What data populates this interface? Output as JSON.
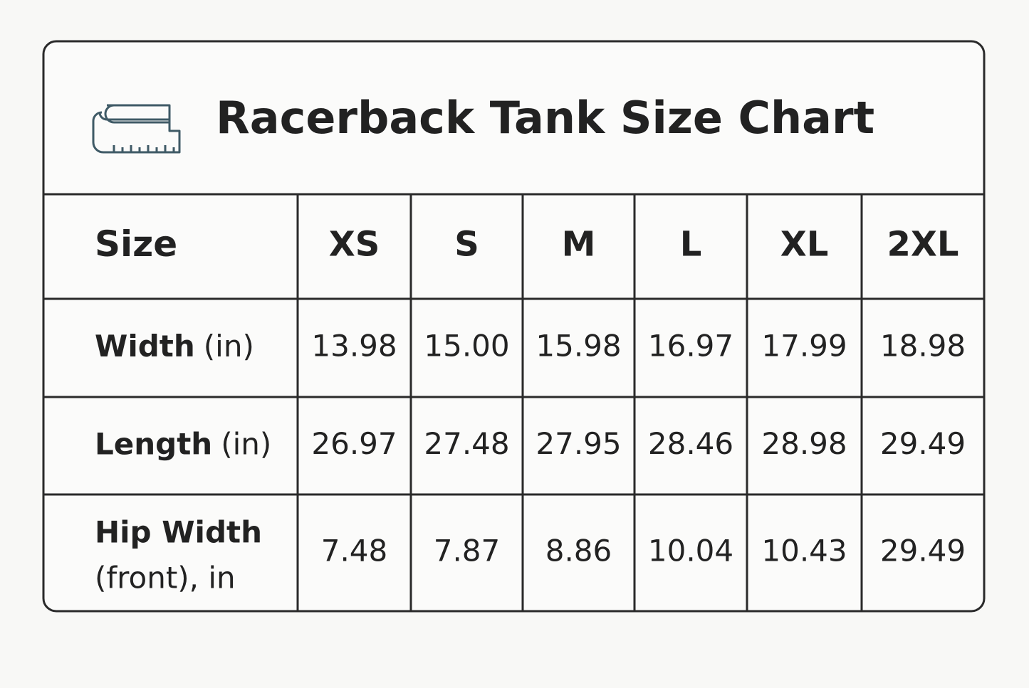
{
  "header": {
    "title": "Racerback Tank Size Chart"
  },
  "table": {
    "header": [
      "Size",
      "XS",
      "S",
      "M",
      "L",
      "XL",
      "2XL"
    ],
    "rows": [
      {
        "label": {
          "name": "Width",
          "unit": "(in)"
        },
        "values": [
          "13.98",
          "15.00",
          "15.98",
          "16.97",
          "17.99",
          "18.98"
        ]
      },
      {
        "label": {
          "name": "Length",
          "unit": "(in)"
        },
        "values": [
          "26.97",
          "27.48",
          "27.95",
          "28.46",
          "28.98",
          "29.49"
        ]
      },
      {
        "label": {
          "name": "Hip Width",
          "unit": "(front), in"
        },
        "values": [
          "7.48",
          "7.87",
          "8.86",
          "10.04",
          "10.43",
          "29.49"
        ]
      }
    ]
  }
}
